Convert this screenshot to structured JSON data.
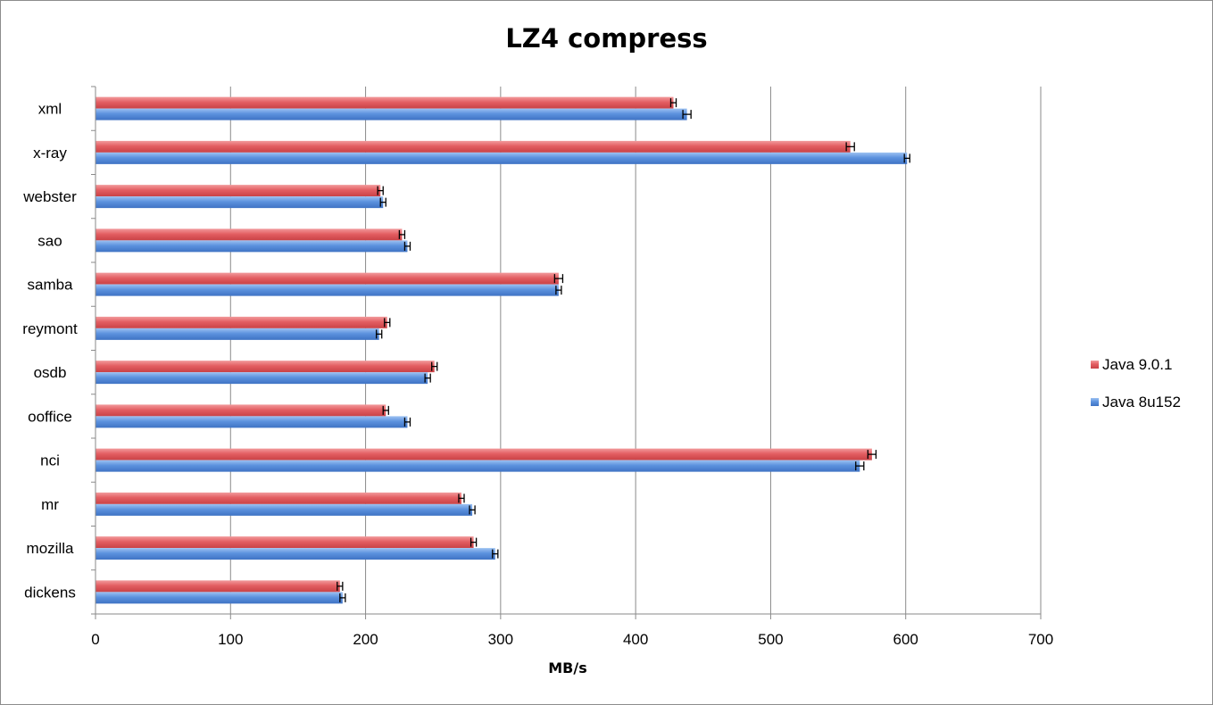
{
  "chart_data": {
    "type": "bar",
    "orientation": "horizontal",
    "title": "LZ4 compress",
    "xlabel": "MB/s",
    "ylabel": "",
    "xlim": [
      0,
      700
    ],
    "xticks": [
      0,
      100,
      200,
      300,
      400,
      500,
      600,
      700
    ],
    "grid": "vertical",
    "legend_position": "right",
    "categories": [
      "xml",
      "x-ray",
      "webster",
      "sao",
      "samba",
      "reymont",
      "osdb",
      "ooffice",
      "nci",
      "mr",
      "mozilla",
      "dickens"
    ],
    "series": [
      {
        "name": "Java 9.0.1",
        "color": "#e05a5e",
        "values": [
          428,
          559,
          211,
          227,
          343,
          216,
          251,
          215,
          575,
          271,
          280,
          181
        ],
        "errors": [
          2,
          3,
          2,
          2,
          3,
          2,
          2,
          2,
          3,
          2,
          2,
          2
        ]
      },
      {
        "name": "Java 8u152",
        "color": "#5b8fdc",
        "values": [
          438,
          601,
          213,
          231,
          343,
          210,
          246,
          231,
          566,
          279,
          296,
          183
        ],
        "errors": [
          3,
          2,
          2,
          2,
          2,
          2,
          2,
          2,
          3,
          2,
          2,
          2
        ]
      }
    ]
  }
}
